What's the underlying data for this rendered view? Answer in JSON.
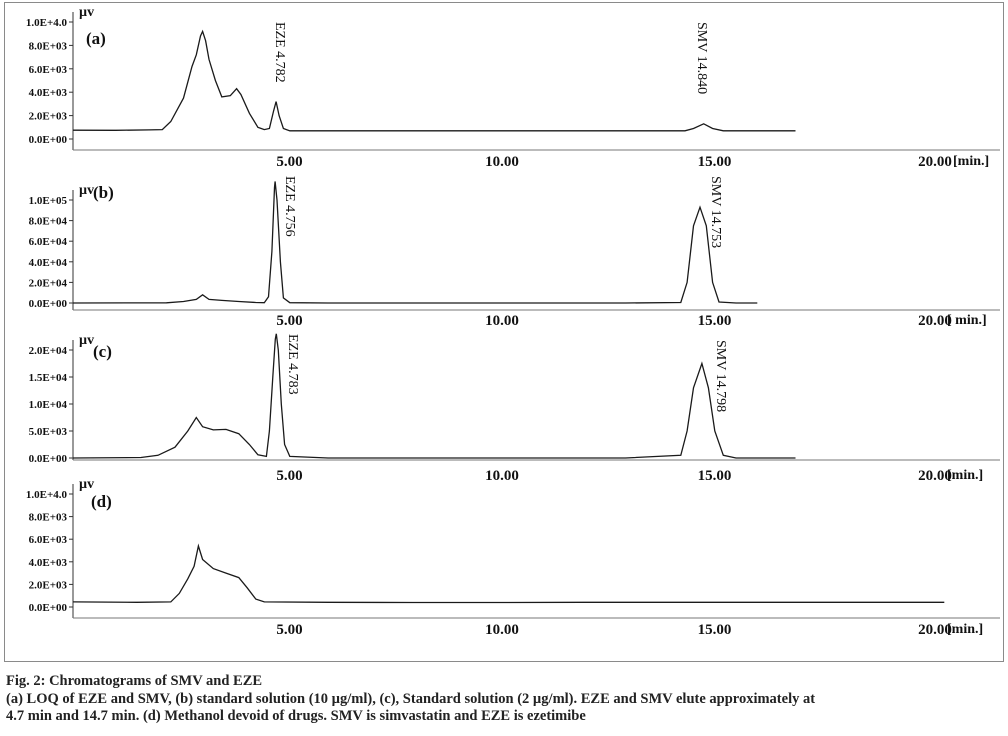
{
  "chart_data": [
    {
      "type": "line",
      "panel_label": "(a)",
      "y_unit": "µv",
      "x_unit": "[min.]",
      "y_ticks": [
        "1.0E+4.0",
        "8.0E+03",
        "6.0E+03",
        "4.0E+03",
        "2.0E+03",
        "0.0E+00"
      ],
      "y_tick_values": [
        10000,
        8000,
        6000,
        4000,
        2000,
        0
      ],
      "x_ticks": [
        "5.00",
        "10.00",
        "15.00",
        "20.00"
      ],
      "x_tick_values": [
        5,
        10,
        15,
        20
      ],
      "xlim": [
        0,
        20
      ],
      "ylim": [
        0,
        10000
      ],
      "baseline": 700,
      "peaks": [
        {
          "label": "EZE 4.782",
          "rt": 4.78,
          "height": 3200
        },
        {
          "label": "SMV 14.840",
          "rt": 14.84,
          "height": 1300
        }
      ],
      "trace": [
        [
          0,
          750
        ],
        [
          1.0,
          740
        ],
        [
          1.8,
          780
        ],
        [
          2.1,
          800
        ],
        [
          2.3,
          1500
        ],
        [
          2.6,
          3500
        ],
        [
          2.8,
          6200
        ],
        [
          2.9,
          7200
        ],
        [
          3.0,
          8800
        ],
        [
          3.05,
          9200
        ],
        [
          3.12,
          8400
        ],
        [
          3.2,
          6800
        ],
        [
          3.35,
          5000
        ],
        [
          3.5,
          3600
        ],
        [
          3.7,
          3700
        ],
        [
          3.85,
          4300
        ],
        [
          3.95,
          3800
        ],
        [
          4.15,
          2200
        ],
        [
          4.35,
          1000
        ],
        [
          4.5,
          800
        ],
        [
          4.62,
          900
        ],
        [
          4.72,
          2400
        ],
        [
          4.78,
          3200
        ],
        [
          4.85,
          2000
        ],
        [
          4.95,
          900
        ],
        [
          5.1,
          700
        ],
        [
          8,
          700
        ],
        [
          12,
          700
        ],
        [
          14.4,
          700
        ],
        [
          14.6,
          900
        ],
        [
          14.84,
          1300
        ],
        [
          15.05,
          900
        ],
        [
          15.3,
          700
        ],
        [
          17.0,
          700
        ]
      ]
    },
    {
      "type": "line",
      "panel_label": "(b)",
      "y_unit": "µv",
      "x_unit": "[ min.]",
      "y_ticks": [
        "1.0E+05",
        "8.0E+04",
        "6.0E+04",
        "4.0E+04",
        "2.0E+04",
        "0.0E+00"
      ],
      "y_tick_values": [
        100000,
        80000,
        60000,
        40000,
        20000,
        0
      ],
      "x_ticks": [
        "5.00",
        "10.00",
        "15.00",
        "20.00"
      ],
      "x_tick_values": [
        5,
        10,
        15,
        20
      ],
      "xlim": [
        0,
        20
      ],
      "ylim": [
        0,
        100000
      ],
      "baseline": 0,
      "peaks": [
        {
          "label": "EZE 4.756",
          "rt": 4.756,
          "height": 118000
        },
        {
          "label": "SMV 14.753",
          "rt": 14.753,
          "height": 93000
        }
      ],
      "trace": [
        [
          0,
          0
        ],
        [
          2.2,
          200
        ],
        [
          2.6,
          1500
        ],
        [
          2.9,
          3500
        ],
        [
          3.05,
          8000
        ],
        [
          3.2,
          3500
        ],
        [
          3.5,
          2500
        ],
        [
          3.9,
          1500
        ],
        [
          4.3,
          500
        ],
        [
          4.5,
          300
        ],
        [
          4.6,
          6000
        ],
        [
          4.68,
          50000
        ],
        [
          4.74,
          112000
        ],
        [
          4.756,
          118000
        ],
        [
          4.8,
          100000
        ],
        [
          4.88,
          40000
        ],
        [
          4.95,
          5000
        ],
        [
          5.1,
          300
        ],
        [
          6,
          0
        ],
        [
          9,
          0
        ],
        [
          13,
          0
        ],
        [
          14.3,
          500
        ],
        [
          14.45,
          20000
        ],
        [
          14.6,
          75000
        ],
        [
          14.753,
          93000
        ],
        [
          14.9,
          75000
        ],
        [
          15.05,
          20000
        ],
        [
          15.2,
          1000
        ],
        [
          15.6,
          0
        ],
        [
          16.1,
          0
        ]
      ]
    },
    {
      "type": "line",
      "panel_label": "(c)",
      "y_unit": "µv",
      "x_unit": "[min.]",
      "y_ticks": [
        "2.0E+04",
        "1.5E+04",
        "1.0E+04",
        "5.0E+03",
        "0.0E+00"
      ],
      "y_tick_values": [
        20000,
        15000,
        10000,
        5000,
        0
      ],
      "x_ticks": [
        "5.00",
        "10.00",
        "15.00",
        "20.00"
      ],
      "x_tick_values": [
        5,
        10,
        15,
        20
      ],
      "xlim": [
        0,
        20
      ],
      "ylim": [
        0,
        20000
      ],
      "baseline": 0,
      "peaks": [
        {
          "label": "EZE 4.783",
          "rt": 4.783,
          "height": 23000
        },
        {
          "label": "SMV 14.798",
          "rt": 14.798,
          "height": 17500
        }
      ],
      "trace": [
        [
          0,
          0
        ],
        [
          1.6,
          100
        ],
        [
          2.0,
          500
        ],
        [
          2.4,
          2000
        ],
        [
          2.7,
          5000
        ],
        [
          2.9,
          7500
        ],
        [
          3.05,
          5800
        ],
        [
          3.3,
          5200
        ],
        [
          3.6,
          5300
        ],
        [
          3.9,
          4500
        ],
        [
          4.15,
          2500
        ],
        [
          4.35,
          600
        ],
        [
          4.55,
          300
        ],
        [
          4.62,
          5000
        ],
        [
          4.7,
          15000
        ],
        [
          4.76,
          22000
        ],
        [
          4.783,
          23000
        ],
        [
          4.83,
          20000
        ],
        [
          4.9,
          10000
        ],
        [
          4.98,
          2500
        ],
        [
          5.1,
          300
        ],
        [
          6,
          0
        ],
        [
          9,
          0
        ],
        [
          13,
          0
        ],
        [
          14.3,
          500
        ],
        [
          14.45,
          5000
        ],
        [
          14.6,
          13000
        ],
        [
          14.798,
          17500
        ],
        [
          14.95,
          13000
        ],
        [
          15.1,
          5000
        ],
        [
          15.3,
          500
        ],
        [
          15.6,
          0
        ],
        [
          17.0,
          0
        ]
      ]
    },
    {
      "type": "line",
      "panel_label": "(d)",
      "y_unit": "µv",
      "x_unit": "[min.]",
      "y_ticks": [
        "1.0E+4.0",
        "8.0E+03",
        "6.0E+03",
        "4.0E+03",
        "2.0E+03",
        "0.0E+00"
      ],
      "y_tick_values": [
        10000,
        8000,
        6000,
        4000,
        2000,
        0
      ],
      "x_ticks": [
        "5.00",
        "10.00",
        "15.00",
        "20.00"
      ],
      "x_tick_values": [
        5,
        10,
        15,
        20
      ],
      "xlim": [
        0,
        20
      ],
      "ylim": [
        0,
        10000
      ],
      "baseline": 400,
      "peaks": [],
      "trace": [
        [
          0,
          450
        ],
        [
          1.5,
          420
        ],
        [
          2.3,
          450
        ],
        [
          2.5,
          1200
        ],
        [
          2.7,
          2500
        ],
        [
          2.85,
          3600
        ],
        [
          2.95,
          5400
        ],
        [
          3.05,
          4200
        ],
        [
          3.3,
          3400
        ],
        [
          3.6,
          3000
        ],
        [
          3.9,
          2600
        ],
        [
          4.1,
          1700
        ],
        [
          4.3,
          700
        ],
        [
          4.5,
          450
        ],
        [
          6,
          420
        ],
        [
          8,
          400
        ],
        [
          10.2,
          400
        ],
        [
          12,
          420
        ],
        [
          16,
          420
        ],
        [
          20.5,
          420
        ]
      ]
    }
  ],
  "caption": {
    "title": "Fig. 2: Chromatograms of SMV and EZE",
    "line1": "(a) LOQ of EZE and SMV, (b) standard solution (10 µg/ml), (c), Standard solution (2 µg/ml). EZE and SMV elute approximately at",
    "line2": "4.7 min and 14.7 min. (d) Methanol devoid of drugs. SMV is simvastatin and EZE is ezetimibe"
  }
}
